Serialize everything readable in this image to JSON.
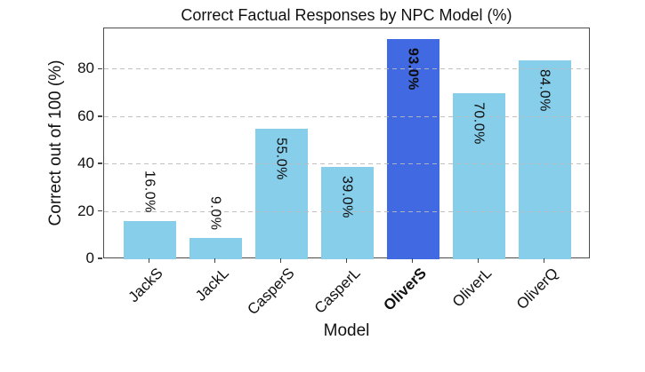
{
  "chart_data": {
    "type": "bar",
    "title": "Correct Factual Responses by NPC Model (%)",
    "xlabel": "Model",
    "ylabel": "Correct out of 100 (%)",
    "categories": [
      "JackS",
      "JackL",
      "CasperS",
      "CasperL",
      "OliverS",
      "OliverL",
      "OliverQ"
    ],
    "values": [
      16,
      9,
      55,
      39,
      93,
      70,
      84
    ],
    "bar_labels": [
      "16.0%",
      "9.0%",
      "55.0%",
      "39.0%",
      "93.0%",
      "70.0%",
      "84.0%"
    ],
    "highlight_index": 4,
    "highlight_category": "OliverS",
    "bar_color": "#87CEEB",
    "highlight_color": "#4169E1",
    "yticks": [
      0,
      20,
      40,
      60,
      80
    ],
    "ylim": [
      0,
      97.4
    ],
    "grid": "horizontal-dashed",
    "grid_color": "#bababa",
    "xtick_rotation": 45,
    "bar_label_rotation": "vertical"
  }
}
